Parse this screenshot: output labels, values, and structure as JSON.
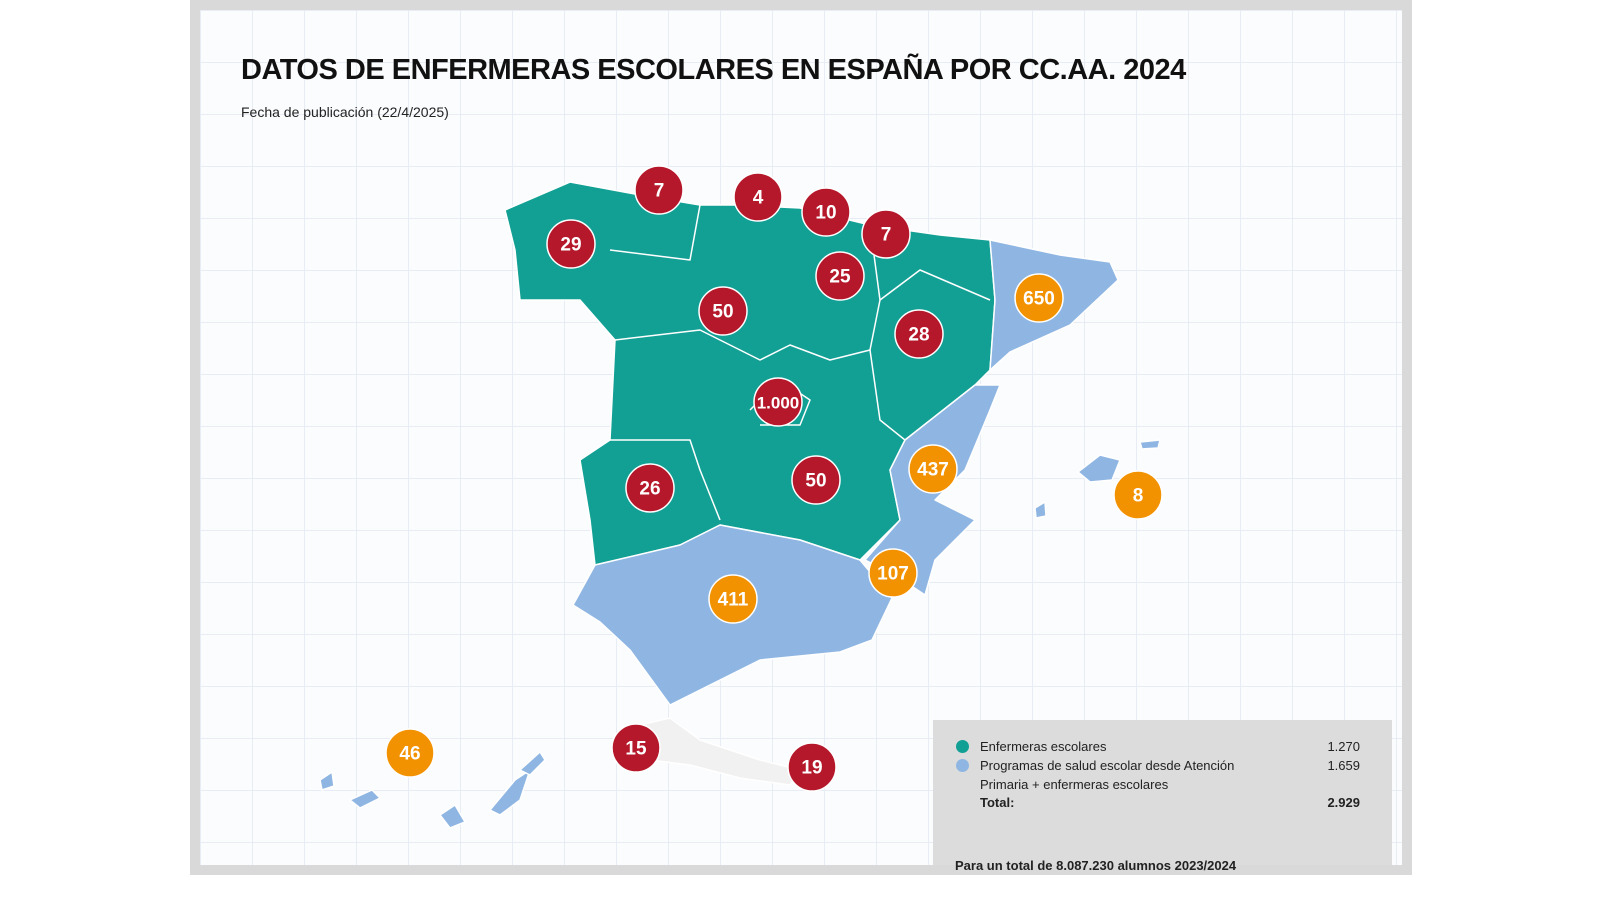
{
  "title": "DATOS DE ENFERMERAS ESCOLARES EN ESPAÑA POR CC.AA. 2024",
  "subtitle": "Fecha de publicación (22/4/2025)",
  "colors": {
    "teal": "#12a095",
    "light_blue": "#8fb6e3",
    "red_marker": "#b5182b",
    "orange_marker": "#f39200",
    "legend_bg": "#dcdcdc"
  },
  "markers": [
    {
      "value": "7",
      "type": "enfermeras"
    },
    {
      "value": "4",
      "type": "enfermeras"
    },
    {
      "value": "10",
      "type": "enfermeras"
    },
    {
      "value": "7",
      "type": "enfermeras"
    },
    {
      "value": "29",
      "type": "enfermeras"
    },
    {
      "value": "25",
      "type": "enfermeras"
    },
    {
      "value": "50",
      "type": "enfermeras"
    },
    {
      "value": "28",
      "type": "enfermeras"
    },
    {
      "value": "1.000",
      "type": "enfermeras"
    },
    {
      "value": "26",
      "type": "enfermeras"
    },
    {
      "value": "50",
      "type": "enfermeras"
    },
    {
      "value": "15",
      "type": "enfermeras"
    },
    {
      "value": "19",
      "type": "enfermeras"
    },
    {
      "value": "650",
      "type": "programas"
    },
    {
      "value": "437",
      "type": "programas"
    },
    {
      "value": "8",
      "type": "programas"
    },
    {
      "value": "107",
      "type": "programas"
    },
    {
      "value": "411",
      "type": "programas"
    },
    {
      "value": "46",
      "type": "programas"
    }
  ],
  "legend": {
    "items": [
      {
        "label": "Enfermeras escolares",
        "value": "1.270",
        "color": "#12a095"
      },
      {
        "label": "Programas de salud escolar desde Atención",
        "value": "1.659",
        "color": "#8fb6e3"
      }
    ],
    "continuation": "Primaria + enfermeras escolares",
    "total_label": "Total:",
    "total_value": "2.929",
    "footer": "Para un total de 8.087.230 alumnos 2023/2024"
  }
}
